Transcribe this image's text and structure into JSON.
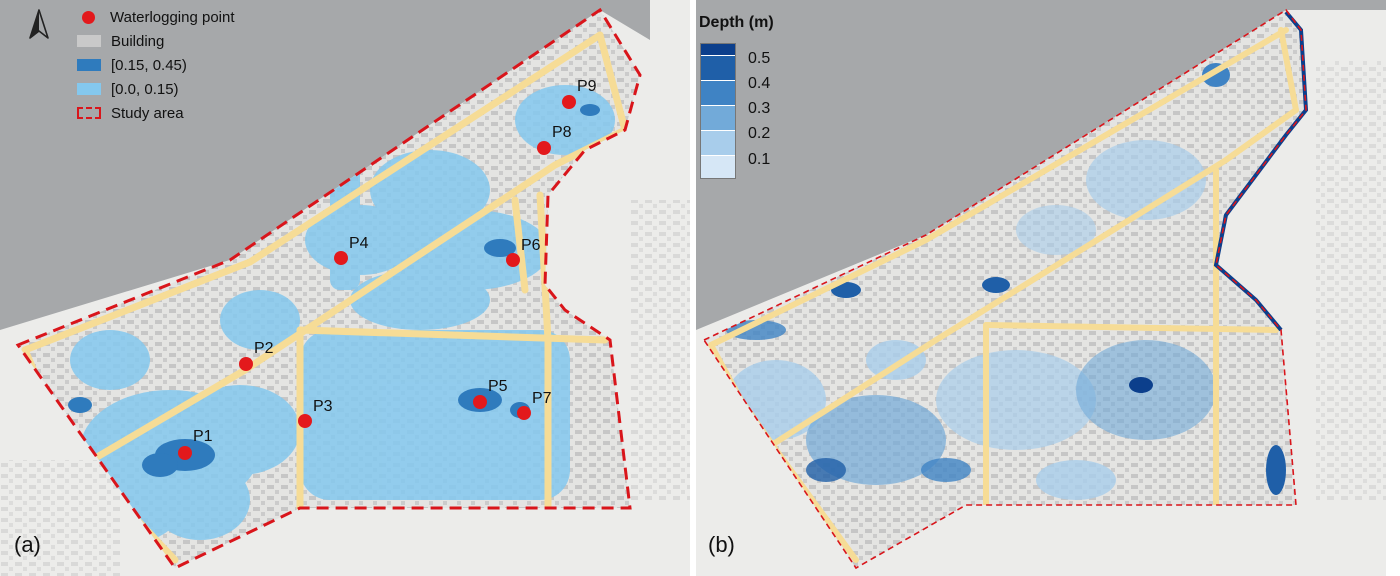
{
  "panel_a": {
    "label": "(a)",
    "legend": [
      {
        "text": "Waterlogging point",
        "kind": "dot",
        "color": "#e3191c"
      },
      {
        "text": "Building",
        "kind": "swatch",
        "color": "#c9c9c9"
      },
      {
        "text": "[0.15, 0.45)",
        "kind": "swatch",
        "color": "#2f7bbd"
      },
      {
        "text": "[0.0, 0.15)",
        "kind": "swatch",
        "color": "#84c8ee"
      },
      {
        "text": "Study area",
        "kind": "dash",
        "color": "#d9151b"
      }
    ],
    "points": [
      "P1",
      "P2",
      "P3",
      "P4",
      "P5",
      "P6",
      "P7",
      "P8",
      "P9"
    ]
  },
  "panel_b": {
    "label": "(b)",
    "depth_title": "Depth (m)",
    "depth_ticks": [
      "0.5",
      "0.4",
      "0.3",
      "0.2",
      "0.1"
    ],
    "depth_colors": [
      "#0c3f8c",
      "#1f5fa8",
      "#3f83c4",
      "#72aad9",
      "#a8cdeb",
      "#d6e7f6"
    ]
  },
  "colors": {
    "river": "#a6a8aa",
    "land": "#ececea",
    "road": "#f6dc96",
    "building": "#c9c9c9",
    "boundary": "#d9151b"
  }
}
